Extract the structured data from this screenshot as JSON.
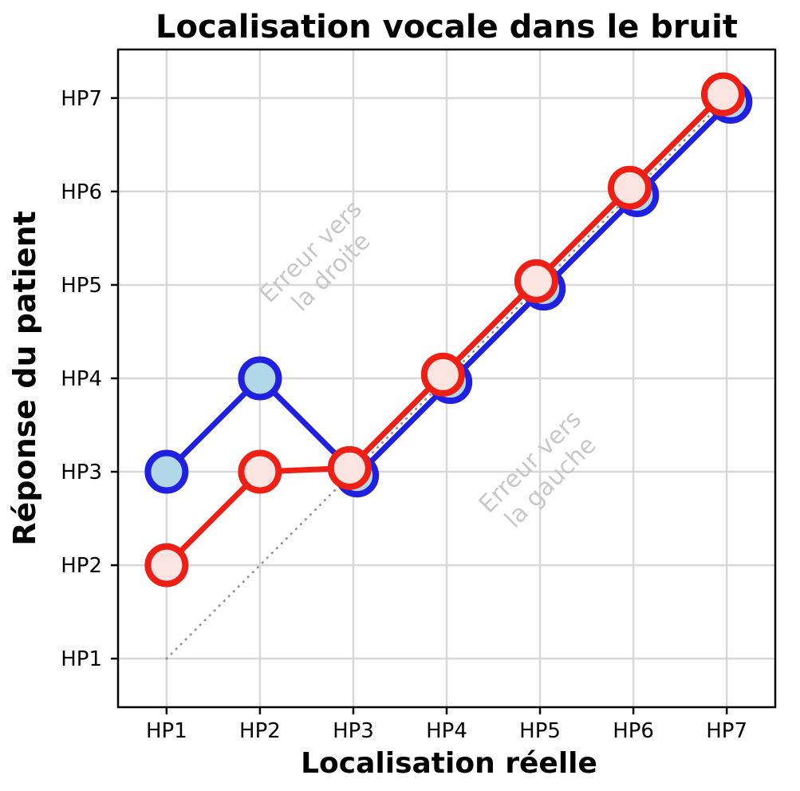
{
  "chart_data": {
    "type": "line",
    "title": "Localisation vocale dans le bruit",
    "xlabel": "Localisation réelle",
    "ylabel": "Réponse du patient",
    "categories": [
      "HP1",
      "HP2",
      "HP3",
      "HP4",
      "HP5",
      "HP6",
      "HP7"
    ],
    "x": [
      1,
      2,
      3,
      4,
      5,
      6,
      7
    ],
    "series": [
      {
        "name": "serie-bleue",
        "color": "#2020e0",
        "marker_fill": "#b2d7e8",
        "values": [
          3,
          4,
          3,
          4,
          5,
          6,
          7
        ]
      },
      {
        "name": "serie-rouge",
        "color": "#ee2015",
        "marker_fill": "#fce4e0",
        "values": [
          2,
          3,
          3,
          4,
          5,
          6,
          7
        ]
      }
    ],
    "identity_line": {
      "style": "dotted",
      "color": "#949494",
      "from": 1,
      "to": 7
    },
    "annotations": [
      {
        "name": "erreur-vers-la-droite",
        "lines": [
          "Erreur vers",
          "la droite"
        ],
        "x": 2.7,
        "y": 5.2,
        "rotation": -45,
        "color": "#c8c8c8"
      },
      {
        "name": "erreur-vers-la-gauche",
        "lines": [
          "Erreur vers",
          "la gauche"
        ],
        "x": 5.05,
        "y": 2.95,
        "rotation": -45,
        "color": "#c8c8c8"
      }
    ],
    "xlim": [
      0.48,
      7.52
    ],
    "ylim": [
      0.48,
      7.52
    ],
    "grid": true,
    "legend": "none",
    "colors": {
      "grid": "#d8d8d8",
      "spine": "#000000",
      "tick_text": "#000000",
      "background": "#ffffff"
    },
    "overlap_dodge": 0.04
  }
}
